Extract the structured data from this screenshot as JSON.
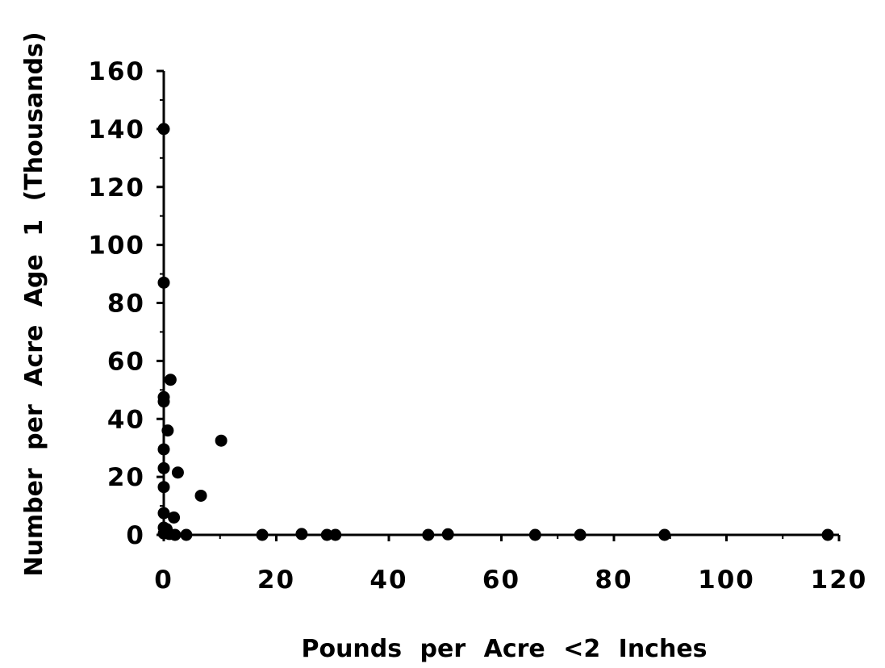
{
  "chart_data": {
    "type": "scatter",
    "title": "",
    "xlabel": "Pounds per Acre <2 Inches",
    "ylabel": "Number per Acre Age 1 (Thousands)",
    "xlim": [
      0,
      120
    ],
    "ylim": [
      0,
      160
    ],
    "x_ticks": [
      "0",
      "20",
      "40",
      "60",
      "80",
      "100",
      "120"
    ],
    "y_ticks": [
      "0",
      "20",
      "40",
      "60",
      "80",
      "100",
      "120",
      "140",
      "160"
    ],
    "grid": false,
    "legend": "none",
    "marker_color": "#000000",
    "series": [
      {
        "points": [
          {
            "x": 0,
            "y": 140
          },
          {
            "x": 0,
            "y": 87
          },
          {
            "x": 1.2,
            "y": 53.5
          },
          {
            "x": 0,
            "y": 47.5
          },
          {
            "x": 0,
            "y": 46
          },
          {
            "x": 0.7,
            "y": 36
          },
          {
            "x": 10.2,
            "y": 32.5
          },
          {
            "x": 0,
            "y": 29.5
          },
          {
            "x": 0,
            "y": 23
          },
          {
            "x": 2.5,
            "y": 21.5
          },
          {
            "x": 0,
            "y": 16.5
          },
          {
            "x": 6.6,
            "y": 13.5
          },
          {
            "x": 0,
            "y": 7.5
          },
          {
            "x": 1.8,
            "y": 6
          },
          {
            "x": 0,
            "y": 2.5
          },
          {
            "x": 0.5,
            "y": 2
          },
          {
            "x": 0,
            "y": 0.5
          },
          {
            "x": 1,
            "y": 0.3
          },
          {
            "x": 2,
            "y": 0
          },
          {
            "x": 4,
            "y": 0
          },
          {
            "x": 17.5,
            "y": 0
          },
          {
            "x": 24.5,
            "y": 0.3
          },
          {
            "x": 29,
            "y": 0
          },
          {
            "x": 30.5,
            "y": 0
          },
          {
            "x": 47,
            "y": 0
          },
          {
            "x": 50.5,
            "y": 0.2
          },
          {
            "x": 66,
            "y": 0
          },
          {
            "x": 74,
            "y": 0
          },
          {
            "x": 89,
            "y": 0
          },
          {
            "x": 118,
            "y": 0
          }
        ]
      }
    ]
  }
}
